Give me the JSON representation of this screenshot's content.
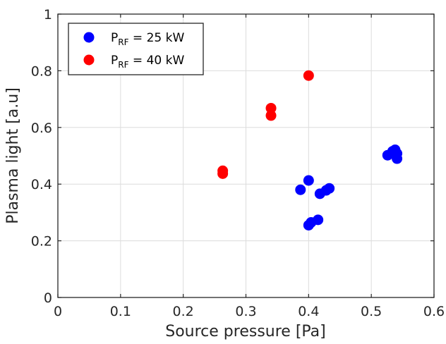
{
  "chart_data": {
    "type": "scatter",
    "xlabel": "Source pressure [Pa]",
    "ylabel": "Plasma light [a.u]",
    "xlim": [
      0,
      0.6
    ],
    "ylim": [
      0,
      1
    ],
    "xticks": [
      0,
      0.1,
      0.2,
      0.3,
      0.4,
      0.5,
      0.6
    ],
    "xtick_labels": [
      "0",
      "0.1",
      "0.2",
      "0.3",
      "0.4",
      "0.5",
      "0.6"
    ],
    "yticks": [
      0,
      0.2,
      0.4,
      0.6,
      0.8,
      1
    ],
    "ytick_labels": [
      "0",
      "0.2",
      "0.4",
      "0.6",
      "0.8",
      "1"
    ],
    "grid": true,
    "legend_position": "top-left",
    "series": [
      {
        "name": "P_RF = 25 kW",
        "legend_main": "P",
        "legend_sub": "RF",
        "legend_rest": " = 25 kW",
        "color": "#0000ff",
        "points": [
          {
            "x": 0.387,
            "y": 0.38
          },
          {
            "x": 0.4,
            "y": 0.413
          },
          {
            "x": 0.4,
            "y": 0.255
          },
          {
            "x": 0.404,
            "y": 0.265
          },
          {
            "x": 0.415,
            "y": 0.274
          },
          {
            "x": 0.418,
            "y": 0.366
          },
          {
            "x": 0.428,
            "y": 0.378
          },
          {
            "x": 0.433,
            "y": 0.385
          },
          {
            "x": 0.526,
            "y": 0.502
          },
          {
            "x": 0.534,
            "y": 0.516
          },
          {
            "x": 0.538,
            "y": 0.521
          },
          {
            "x": 0.541,
            "y": 0.508
          },
          {
            "x": 0.541,
            "y": 0.49
          }
        ]
      },
      {
        "name": "P_RF = 40 kW",
        "legend_main": "P",
        "legend_sub": "RF",
        "legend_rest": " = 40 kW",
        "color": "#ff0000",
        "points": [
          {
            "x": 0.263,
            "y": 0.437
          },
          {
            "x": 0.263,
            "y": 0.447
          },
          {
            "x": 0.34,
            "y": 0.642
          },
          {
            "x": 0.34,
            "y": 0.668
          },
          {
            "x": 0.4,
            "y": 0.783
          }
        ]
      }
    ]
  }
}
